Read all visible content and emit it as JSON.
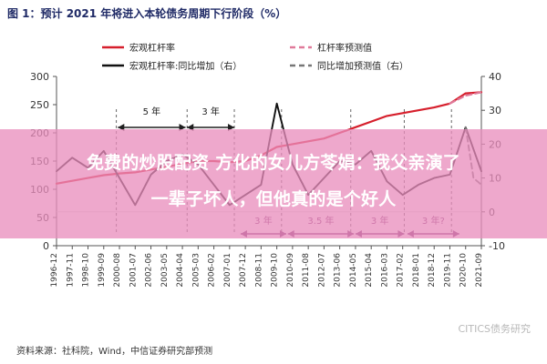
{
  "figure": {
    "title": "图 1：预计 2021 年将进入本轮债务周期下行阶段（%）",
    "source": "资料来源：社科院，Wind，中信证券研究部预测",
    "watermark": "CITICS债务研究"
  },
  "overlay": {
    "line1": "免费的炒股配资 方化的女儿方苓娟：我父亲演了",
    "line2": "一辈子坏人，但他真的是个好人"
  },
  "chart_data": {
    "type": "line",
    "legend_placement": "top-center",
    "grid": false,
    "x_categories": [
      "1996-12",
      "1997-11",
      "1998-10",
      "1999-09",
      "2000-08",
      "2001-07",
      "2002-06",
      "2003-05",
      "2004-04",
      "2005-03",
      "2006-02",
      "2007-01",
      "2007-12",
      "2008-11",
      "2009-10",
      "2010-09",
      "2011-08",
      "2012-07",
      "2013-06",
      "2014-05",
      "2015-04",
      "2016-03",
      "2017-02",
      "2018-01",
      "2018-12",
      "2019-11",
      "2020-10",
      "2021-09"
    ],
    "y_left": {
      "min": 0,
      "max": 300,
      "ticks": [
        "0",
        "50",
        "100",
        "150",
        "200",
        "250",
        "300"
      ]
    },
    "y_right": {
      "min": -10,
      "max": 40,
      "ticks": [
        "-10",
        "0",
        "10",
        "20",
        "30",
        "40"
      ]
    },
    "legend": [
      {
        "label": "宏观杠杆率",
        "color": "#d61f2c",
        "dash": "solid"
      },
      {
        "label": "杠杆率预测值",
        "color": "#e07a9a",
        "dash": "dashed"
      },
      {
        "label": "宏观杠杆率:同比增加（右）",
        "color": "#111111",
        "dash": "solid"
      },
      {
        "label": "同比增加预测值（右）",
        "color": "#777777",
        "dash": "dashed"
      }
    ],
    "series": [
      {
        "name": "宏观杠杆率",
        "axis": "left",
        "color": "#d61f2c",
        "dash": "solid",
        "points": [
          [
            0,
            110
          ],
          [
            1,
            115
          ],
          [
            2,
            120
          ],
          [
            3,
            125
          ],
          [
            4,
            128
          ],
          [
            5,
            130
          ],
          [
            6,
            135
          ],
          [
            7,
            140
          ],
          [
            8,
            145
          ],
          [
            9,
            150
          ],
          [
            10,
            150
          ],
          [
            11,
            148
          ],
          [
            12,
            150
          ],
          [
            13,
            160
          ],
          [
            14,
            175
          ],
          [
            15,
            180
          ],
          [
            16,
            185
          ],
          [
            17,
            190
          ],
          [
            18,
            200
          ],
          [
            19,
            210
          ],
          [
            20,
            220
          ],
          [
            21,
            230
          ],
          [
            22,
            235
          ],
          [
            23,
            240
          ],
          [
            24,
            245
          ],
          [
            25,
            252
          ],
          [
            26,
            270
          ],
          [
            27,
            272
          ]
        ]
      },
      {
        "name": "杠杆率预测值",
        "axis": "left",
        "color": "#e07a9a",
        "dash": "dashed",
        "points": [
          [
            25,
            252
          ],
          [
            26,
            266
          ],
          [
            27,
            272
          ]
        ]
      },
      {
        "name": "宏观杠杆率:同比增加（右）",
        "axis": "right",
        "color": "#111111",
        "dash": "solid",
        "points": [
          [
            0,
            12
          ],
          [
            1,
            16
          ],
          [
            2,
            13
          ],
          [
            3,
            18
          ],
          [
            4,
            10
          ],
          [
            5,
            2
          ],
          [
            6,
            11
          ],
          [
            7,
            15
          ],
          [
            8,
            17
          ],
          [
            9,
            14
          ],
          [
            10,
            8
          ],
          [
            11,
            2
          ],
          [
            12,
            5
          ],
          [
            13,
            8
          ],
          [
            14,
            32
          ],
          [
            15,
            14
          ],
          [
            16,
            5
          ],
          [
            17,
            10
          ],
          [
            18,
            15
          ],
          [
            19,
            14
          ],
          [
            20,
            18
          ],
          [
            21,
            9
          ],
          [
            22,
            5
          ],
          [
            23,
            8
          ],
          [
            24,
            10
          ],
          [
            25,
            11
          ],
          [
            26,
            25
          ],
          [
            27,
            12
          ]
        ]
      },
      {
        "name": "同比增加预测值（右）",
        "axis": "right",
        "color": "#777777",
        "dash": "dashed",
        "points": [
          [
            26,
            25
          ],
          [
            26.5,
            10
          ],
          [
            27,
            8
          ]
        ]
      }
    ],
    "annotations": [
      {
        "label": "5 年",
        "x_from": 3.9,
        "x_to": 8.2,
        "row": "upper",
        "color": "#1f1f1f"
      },
      {
        "label": "3 年",
        "x_from": 8.3,
        "x_to": 11.3,
        "row": "upper",
        "color": "#1f1f1f"
      },
      {
        "label": "3 年",
        "x_from": 11.7,
        "x_to": 14.6,
        "row": "lower",
        "color": "#7a2f6f"
      },
      {
        "label": "3.5 年",
        "x_from": 14.7,
        "x_to": 18.9,
        "row": "lower",
        "color": "#7a2f6f"
      },
      {
        "label": "3 年",
        "x_from": 19.0,
        "x_to": 22.1,
        "row": "lower",
        "color": "#7a2f6f"
      },
      {
        "label": "3 年?",
        "x_from": 22.3,
        "x_to": 25.6,
        "row": "lower",
        "color": "#7a2f6f"
      }
    ],
    "dotted_markers": [
      3.8,
      8.3,
      11.3,
      14.3,
      18.7,
      22.1,
      25.1
    ],
    "title": "预计 2021 年将进入本轮债务周期下行阶段（%）",
    "xlabel": "",
    "ylabel": ""
  }
}
